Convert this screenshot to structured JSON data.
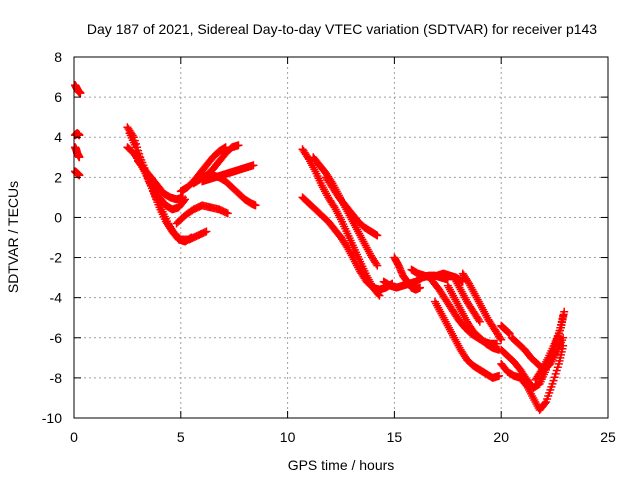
{
  "chart_data": {
    "type": "scatter",
    "title": "Day 187 of 2021, Sidereal Day-to-day VTEC variation (SDTVAR) for receiver p143",
    "xlabel": "GPS time / hours",
    "ylabel": "SDTVAR / TECUs",
    "xlim": [
      0,
      25
    ],
    "ylim": [
      -10,
      8
    ],
    "xticks": [
      0,
      5,
      10,
      15,
      20,
      25
    ],
    "yticks": [
      -10,
      -8,
      -6,
      -4,
      -2,
      0,
      2,
      4,
      6,
      8
    ],
    "xtick_labels": [
      "0",
      "5",
      "10",
      "15",
      "20",
      "25"
    ],
    "ytick_labels": [
      "-10",
      "-8",
      "-6",
      "-4",
      "-2",
      "0",
      "2",
      "4",
      "6",
      "8"
    ],
    "grid": true,
    "marker": "plus",
    "color": "#ff0000",
    "series": [
      {
        "name": "s0a",
        "x": [
          0.05,
          0.1,
          0.15,
          0.2,
          0.25,
          0.3
        ],
        "y": [
          6.6,
          6.5,
          6.4,
          6.3,
          6.25,
          6.2
        ]
      },
      {
        "name": "s0b",
        "x": [
          0.05,
          0.1,
          0.15,
          0.2,
          0.25
        ],
        "y": [
          4.1,
          4.15,
          4.2,
          4.15,
          4.1
        ]
      },
      {
        "name": "s0c",
        "x": [
          0.05,
          0.1,
          0.15,
          0.2,
          0.25
        ],
        "y": [
          3.5,
          3.4,
          3.2,
          3.1,
          3.0
        ]
      },
      {
        "name": "s0d",
        "x": [
          0.05,
          0.1,
          0.15,
          0.2,
          0.25
        ],
        "y": [
          2.3,
          2.25,
          2.2,
          2.15,
          2.1
        ]
      },
      {
        "name": "s1",
        "x": [
          2.5,
          2.8,
          3.1,
          3.4,
          3.7,
          4.0,
          4.3,
          4.6,
          4.9,
          5.2,
          5.5
        ],
        "y": [
          4.5,
          4.0,
          3.0,
          2.2,
          1.3,
          0.5,
          -0.2,
          -0.7,
          -1.1,
          -1.2,
          -1.0
        ]
      },
      {
        "name": "s2",
        "x": [
          2.6,
          2.9,
          3.2,
          3.5,
          3.8,
          4.1,
          4.4,
          4.7,
          5.0,
          5.4,
          5.8,
          6.2
        ],
        "y": [
          4.2,
          3.5,
          2.6,
          1.8,
          1.1,
          0.4,
          -0.3,
          -0.8,
          -1.1,
          -1.1,
          -0.9,
          -0.7
        ]
      },
      {
        "name": "s3",
        "x": [
          2.5,
          2.8,
          3.1,
          3.4,
          3.7,
          4.0,
          4.3,
          4.6,
          4.9,
          5.2
        ],
        "y": [
          3.5,
          3.2,
          2.7,
          2.1,
          1.5,
          1.0,
          0.6,
          0.4,
          0.5,
          0.9
        ]
      },
      {
        "name": "s4",
        "x": [
          3.0,
          3.3,
          3.6,
          3.9,
          4.2,
          4.5,
          4.8,
          5.1
        ],
        "y": [
          2.8,
          2.4,
          2.0,
          1.6,
          1.2,
          1.0,
          0.9,
          1.0
        ]
      },
      {
        "name": "s5",
        "x": [
          5.0,
          5.3,
          5.6,
          5.9,
          6.2,
          6.5,
          6.8,
          7.1
        ],
        "y": [
          1.3,
          1.5,
          1.8,
          2.2,
          2.6,
          3.0,
          3.3,
          3.5
        ]
      },
      {
        "name": "s6",
        "x": [
          5.6,
          5.9,
          6.2,
          6.5,
          6.8,
          7.1,
          7.4,
          7.7
        ],
        "y": [
          1.7,
          1.9,
          2.1,
          2.4,
          2.8,
          3.2,
          3.5,
          3.6
        ]
      },
      {
        "name": "s7",
        "x": [
          6.0,
          6.3,
          6.6,
          6.9,
          7.2,
          7.5,
          7.8,
          8.1,
          8.4
        ],
        "y": [
          1.8,
          1.9,
          2.0,
          2.1,
          2.2,
          2.3,
          2.4,
          2.5,
          2.6
        ]
      },
      {
        "name": "s8",
        "x": [
          6.5,
          6.8,
          7.1,
          7.4,
          7.7,
          8.0,
          8.3,
          8.5
        ],
        "y": [
          2.1,
          2.0,
          1.8,
          1.5,
          1.2,
          0.9,
          0.7,
          0.6
        ]
      },
      {
        "name": "s9",
        "x": [
          4.8,
          5.2,
          5.6,
          6.0,
          6.4,
          6.8,
          7.2
        ],
        "y": [
          -0.3,
          0.1,
          0.4,
          0.6,
          0.5,
          0.4,
          0.2
        ]
      },
      {
        "name": "s10",
        "x": [
          10.7,
          11.0,
          11.3,
          11.6,
          11.9,
          12.2,
          12.5,
          12.8,
          13.1,
          13.4,
          13.7,
          14.0,
          14.3
        ],
        "y": [
          3.4,
          2.9,
          2.3,
          1.6,
          1.0,
          0.5,
          -0.1,
          -0.8,
          -1.5,
          -2.2,
          -2.9,
          -3.5,
          -3.9
        ]
      },
      {
        "name": "s11",
        "x": [
          10.7,
          11.0,
          11.3,
          11.6,
          11.9,
          12.2,
          12.5,
          12.8,
          13.1,
          13.4,
          13.7,
          14.0,
          14.3,
          14.6,
          14.9
        ],
        "y": [
          1.0,
          0.7,
          0.4,
          0.1,
          -0.2,
          -0.6,
          -1.0,
          -1.5,
          -2.1,
          -2.7,
          -3.2,
          -3.5,
          -3.6,
          -3.5,
          -3.3
        ]
      },
      {
        "name": "s12",
        "x": [
          11.2,
          11.5,
          11.8,
          12.1,
          12.4,
          12.7,
          13.0,
          13.3,
          13.6,
          13.9,
          14.2
        ],
        "y": [
          3.0,
          2.6,
          2.2,
          1.7,
          1.1,
          0.5,
          -0.1,
          -0.7,
          -1.3,
          -1.9,
          -2.4
        ]
      },
      {
        "name": "s13",
        "x": [
          11.8,
          12.1,
          12.4,
          12.7,
          13.0,
          13.3,
          13.6,
          13.9,
          14.2
        ],
        "y": [
          2.0,
          1.5,
          1.0,
          0.6,
          0.2,
          -0.2,
          -0.5,
          -0.7,
          -0.9
        ]
      },
      {
        "name": "s14",
        "x": [
          14.5,
          14.8,
          15.1,
          15.4,
          15.7,
          16.0,
          16.3,
          16.6,
          16.9,
          17.2,
          17.5
        ],
        "y": [
          -3.2,
          -3.4,
          -3.5,
          -3.4,
          -3.3,
          -3.2,
          -3.0,
          -2.9,
          -2.9,
          -3.0,
          -3.1
        ]
      },
      {
        "name": "s15",
        "x": [
          15.0,
          15.2,
          15.4,
          15.6,
          15.8,
          16.0,
          16.2
        ],
        "y": [
          -2.0,
          -2.4,
          -2.9,
          -3.2,
          -3.5,
          -3.6,
          -3.5
        ]
      },
      {
        "name": "s16",
        "x": [
          15.8,
          16.1,
          16.4,
          16.7,
          17.0,
          17.3,
          17.6,
          17.9,
          18.2
        ],
        "y": [
          -2.6,
          -2.8,
          -2.9,
          -3.0,
          -2.9,
          -2.8,
          -2.9,
          -3.0,
          -3.2
        ]
      },
      {
        "name": "s17",
        "x": [
          16.8,
          17.1,
          17.4,
          17.7,
          18.0,
          18.3,
          18.6,
          18.9,
          19.2,
          19.5,
          19.8
        ],
        "y": [
          -3.2,
          -3.6,
          -4.1,
          -4.6,
          -5.1,
          -5.5,
          -5.8,
          -6.0,
          -6.2,
          -6.3,
          -6.3
        ]
      },
      {
        "name": "s18",
        "x": [
          16.9,
          17.2,
          17.5,
          17.8,
          18.1,
          18.4,
          18.7,
          19.0,
          19.3,
          19.6,
          19.9
        ],
        "y": [
          -4.2,
          -4.8,
          -5.4,
          -6.0,
          -6.6,
          -7.1,
          -7.4,
          -7.6,
          -7.8,
          -8.0,
          -7.9
        ]
      },
      {
        "name": "s19",
        "x": [
          17.5,
          17.8,
          18.1,
          18.4,
          18.7,
          19.0,
          19.3,
          19.6,
          19.9
        ],
        "y": [
          -3.4,
          -4.0,
          -4.6,
          -5.2,
          -5.7,
          -6.0,
          -6.3,
          -6.5,
          -6.6
        ]
      },
      {
        "name": "s20",
        "x": [
          18.2,
          18.5,
          18.8,
          19.1,
          19.4,
          19.7,
          20.0
        ],
        "y": [
          -2.8,
          -3.3,
          -3.9,
          -4.5,
          -5.1,
          -5.6,
          -6.1
        ]
      },
      {
        "name": "s21",
        "x": [
          17.8,
          18.1,
          18.4,
          18.7,
          19.0
        ],
        "y": [
          -3.0,
          -3.6,
          -4.2,
          -4.7,
          -5.2
        ]
      },
      {
        "name": "s22",
        "x": [
          20.0,
          20.3,
          20.6,
          20.9,
          21.2,
          21.5,
          21.8,
          22.1,
          22.4,
          22.7,
          22.9
        ],
        "y": [
          -6.6,
          -6.9,
          -7.2,
          -7.6,
          -8.1,
          -8.5,
          -8.3,
          -7.6,
          -6.7,
          -5.8,
          -4.9
        ]
      },
      {
        "name": "s23",
        "x": [
          20.0,
          20.3,
          20.6,
          20.9,
          21.2,
          21.5,
          21.8,
          22.1,
          22.4,
          22.7,
          22.9
        ],
        "y": [
          -7.3,
          -7.7,
          -7.9,
          -8.0,
          -8.4,
          -9.0,
          -9.6,
          -9.2,
          -8.3,
          -7.3,
          -6.4
        ]
      },
      {
        "name": "s24",
        "x": [
          20.5,
          20.8,
          21.1,
          21.4,
          21.7,
          22.0,
          22.3,
          22.6,
          22.9
        ],
        "y": [
          -6.0,
          -6.3,
          -6.6,
          -7.0,
          -7.3,
          -7.6,
          -7.3,
          -6.7,
          -6.0
        ]
      },
      {
        "name": "s25",
        "x": [
          20.0,
          20.2,
          20.4
        ],
        "y": [
          -5.4,
          -5.6,
          -5.8
        ]
      },
      {
        "name": "s26",
        "x": [
          21.6,
          21.9,
          22.2,
          22.5,
          22.8,
          22.95
        ],
        "y": [
          -8.1,
          -7.6,
          -7.0,
          -6.3,
          -5.5,
          -4.7
        ]
      }
    ]
  }
}
